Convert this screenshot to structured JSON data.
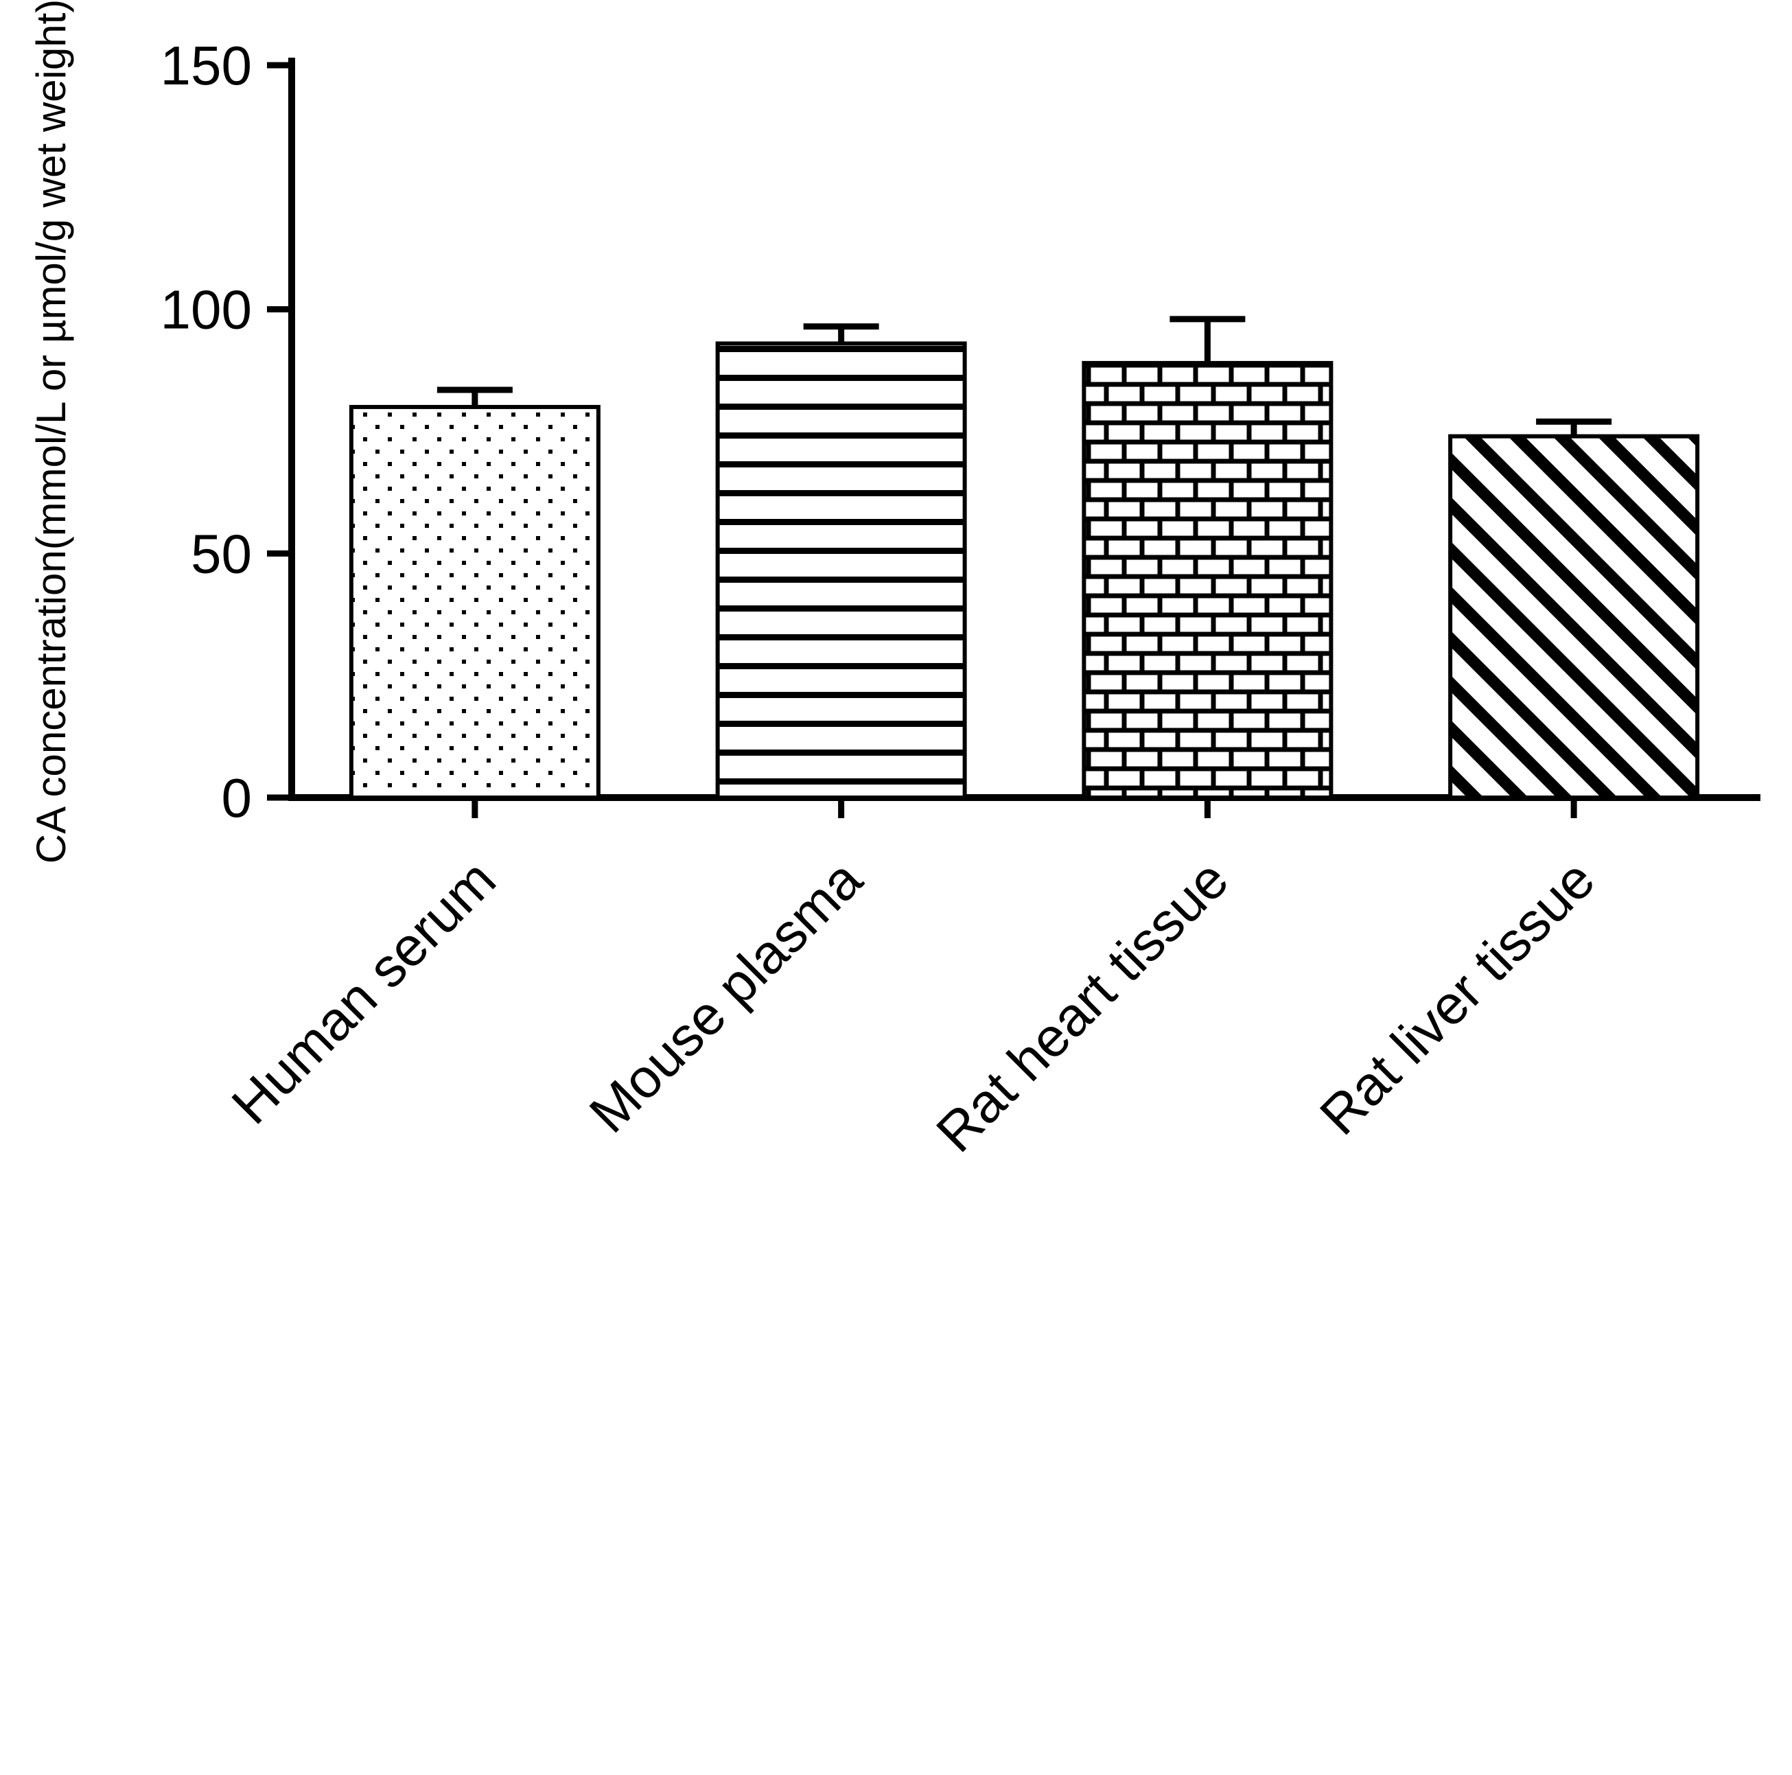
{
  "chart_data": {
    "type": "bar",
    "title": "",
    "categories": [
      "Human serum",
      "Mouse plasma",
      "Rat heart tissue",
      "Rat liver tissue"
    ],
    "values": [
      80,
      93,
      89,
      74
    ],
    "errors_upper": [
      3.5,
      3.5,
      9,
      3
    ],
    "xlabel": "",
    "ylabel": "CA concentration(mmol/L or  µmol/g wet weight)",
    "ylim": [
      0,
      150
    ],
    "yticks": [
      0,
      50,
      100,
      150
    ],
    "bar_patterns": [
      "dots",
      "horizontal-lines",
      "bricks",
      "diagonal-lines"
    ],
    "bar_fill": "#ffffff",
    "bar_outline": "#000000",
    "axis_color": "#000000",
    "grid": false,
    "legend": "none",
    "error_bar_style": "upper-cap-only",
    "x_label_rotation_deg": 45
  }
}
